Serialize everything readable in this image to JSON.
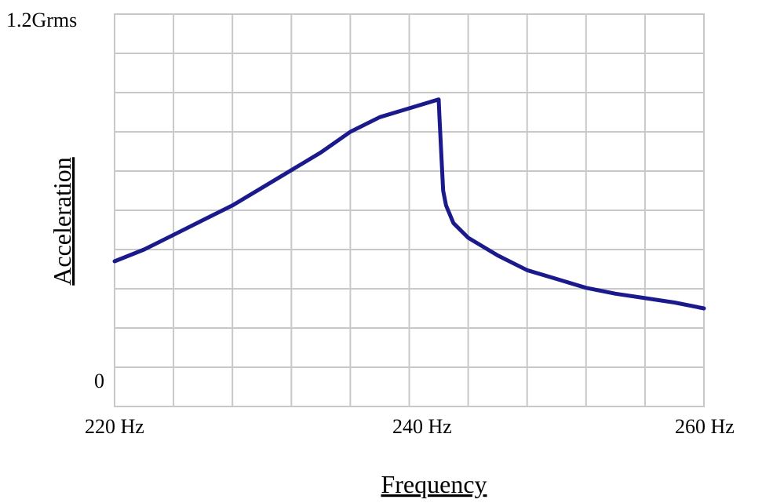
{
  "chart_data": {
    "type": "line",
    "title": "",
    "xlabel": "Frequency",
    "ylabel": "Acceleration",
    "xlim": [
      220,
      260
    ],
    "ylim": [
      0,
      1.2
    ],
    "x_unit": "Hz",
    "y_unit": "Grms",
    "grid": true,
    "x_tick_labels": [
      {
        "value": 220,
        "label": "220 Hz"
      },
      {
        "value": 240,
        "label": "240 Hz"
      },
      {
        "value": 260,
        "label": "260 Hz"
      }
    ],
    "y_tick_labels": [
      {
        "value": 0,
        "label": "0"
      },
      {
        "value": 1.2,
        "label": "1.2Grms"
      }
    ],
    "line_color": "#1a1a8c",
    "grid_color": "#c8c8c8",
    "series": [
      {
        "name": "",
        "x": [
          220,
          222,
          224,
          226,
          228,
          230,
          232,
          234,
          236,
          238,
          240,
          242,
          242.05,
          242.2,
          242.3,
          242.5,
          243,
          244,
          246,
          248,
          250,
          252,
          254,
          256,
          258,
          260
        ],
        "y": [
          0.36,
          0.4,
          0.45,
          0.5,
          0.55,
          0.61,
          0.67,
          0.73,
          0.8,
          0.85,
          0.88,
          0.91,
          0.85,
          0.7,
          0.6,
          0.55,
          0.49,
          0.44,
          0.38,
          0.33,
          0.3,
          0.27,
          0.25,
          0.235,
          0.22,
          0.2
        ]
      }
    ]
  }
}
